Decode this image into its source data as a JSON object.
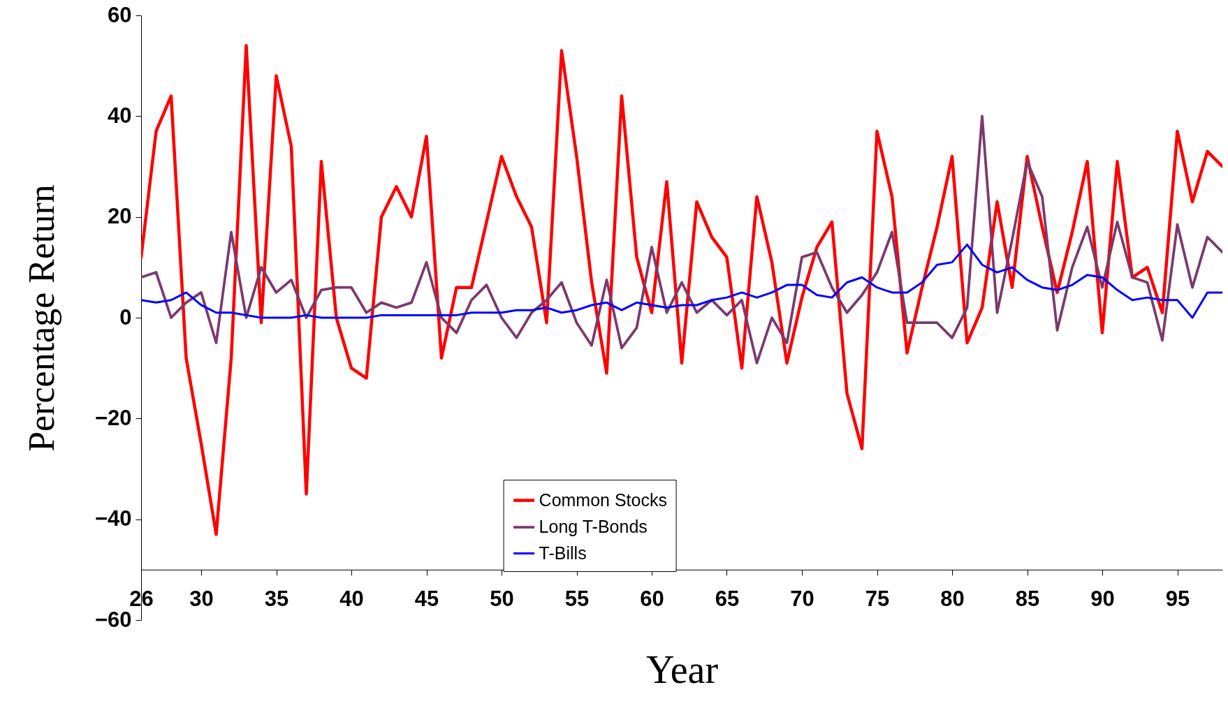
{
  "chart_data": {
    "type": "line",
    "xlabel": "Year",
    "ylabel": "Percentage Return",
    "x": [
      26,
      27,
      28,
      29,
      30,
      31,
      32,
      33,
      34,
      35,
      36,
      37,
      38,
      39,
      40,
      41,
      42,
      43,
      44,
      45,
      46,
      47,
      48,
      49,
      50,
      51,
      52,
      53,
      54,
      55,
      56,
      57,
      58,
      59,
      60,
      61,
      62,
      63,
      64,
      65,
      66,
      67,
      68,
      69,
      70,
      71,
      72,
      73,
      74,
      75,
      76,
      77,
      78,
      79,
      80,
      81,
      82,
      83,
      84,
      85,
      86,
      87,
      88,
      89,
      90,
      91,
      92,
      93,
      94,
      95,
      96,
      97,
      98
    ],
    "series": [
      {
        "name": "Common Stocks",
        "color": "#ff0000",
        "values": [
          12,
          37,
          44,
          -8,
          -25,
          -43,
          -8,
          54,
          -1,
          48,
          34,
          -35,
          31,
          0,
          -10,
          -12,
          20,
          26,
          20,
          36,
          -8,
          6,
          6,
          19,
          32,
          24,
          18,
          -1,
          53,
          32,
          7,
          -11,
          44,
          12,
          1,
          27,
          -9,
          23,
          16,
          12,
          -10,
          24,
          11,
          -9,
          4,
          14,
          19,
          -15,
          -26,
          37,
          24,
          -7,
          6,
          18,
          32,
          -5,
          2,
          23,
          6,
          32,
          18,
          5,
          17,
          31,
          -3,
          31,
          8,
          10,
          1,
          37,
          23,
          33,
          30
        ]
      },
      {
        "name": "Long T-Bonds",
        "color": "#7b3a6e",
        "values": [
          8,
          9,
          0,
          3,
          5,
          -5,
          17,
          0,
          10,
          5,
          7.5,
          0,
          5.5,
          6,
          6,
          1,
          3,
          2,
          3,
          11,
          0,
          -3,
          3.5,
          6.5,
          0,
          -4,
          1,
          3.5,
          7,
          -1,
          -5.5,
          7.5,
          -6,
          -2,
          14,
          1,
          7,
          1,
          3.5,
          0.5,
          3.5,
          -9,
          0,
          -5,
          12,
          13,
          6,
          1,
          4.5,
          9,
          17,
          -1,
          -1,
          -1,
          -4,
          2,
          40,
          1,
          15.5,
          31,
          24,
          -2.5,
          10,
          18,
          6,
          19,
          8,
          7,
          -4.5,
          18.5,
          6,
          16,
          13
        ]
      },
      {
        "name": "T-Bills",
        "color": "#0000ff",
        "values": [
          3.5,
          3,
          3.5,
          5,
          2.5,
          1,
          1,
          0.5,
          0,
          0,
          0,
          0.5,
          0,
          0,
          0,
          0,
          0.5,
          0.5,
          0.5,
          0.5,
          0.5,
          0.5,
          1,
          1,
          1,
          1.5,
          1.5,
          2,
          1,
          1.5,
          2.5,
          3,
          1.5,
          3,
          2.5,
          2,
          2.5,
          2.5,
          3.5,
          4,
          5,
          4,
          5,
          6.5,
          6.5,
          4.5,
          4,
          7,
          8,
          6,
          5,
          5,
          7,
          10.5,
          11,
          14.5,
          10.5,
          9,
          10,
          7.5,
          6,
          5.5,
          6.5,
          8.5,
          8,
          5.5,
          3.5,
          4,
          3.5,
          3.5,
          0,
          5,
          5
        ]
      }
    ],
    "xlim": [
      26,
      98
    ],
    "xticks": [
      26,
      30,
      35,
      40,
      45,
      50,
      55,
      60,
      65,
      70,
      75,
      80,
      85,
      90,
      95
    ],
    "ylim": [
      -60,
      60
    ],
    "yticks": [
      -60,
      -40,
      -20,
      0,
      20,
      40,
      60
    ],
    "grid": false,
    "legend": "bottom"
  }
}
